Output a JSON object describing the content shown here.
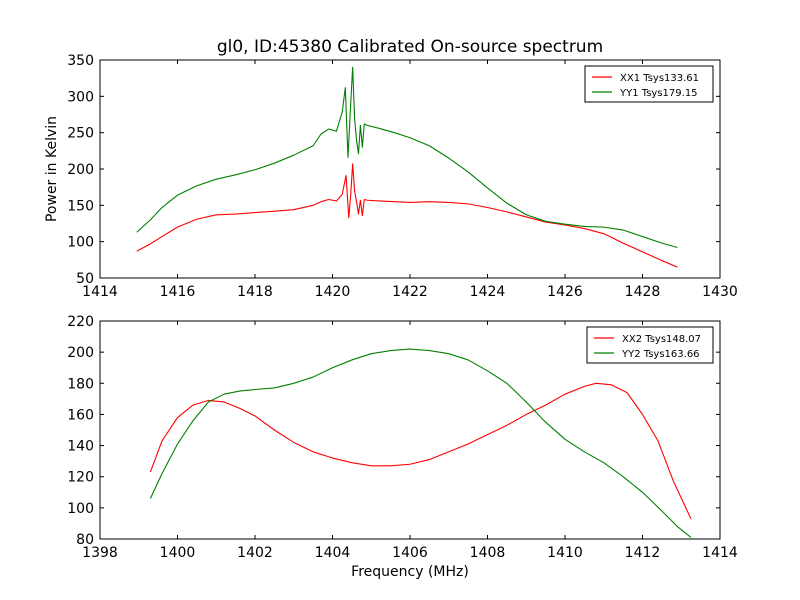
{
  "chart_data": [
    {
      "type": "line",
      "title": "gl0, ID:45380 Calibrated On-source spectrum",
      "xlabel": "",
      "ylabel": "Power in Kelvin",
      "xlim": [
        1414,
        1430
      ],
      "ylim": [
        50,
        350
      ],
      "xticks": [
        "1414",
        "1416",
        "1418",
        "1420",
        "1422",
        "1424",
        "1426",
        "1428",
        "1430"
      ],
      "yticks": [
        "50",
        "100",
        "150",
        "200",
        "250",
        "300",
        "350"
      ],
      "grid": false,
      "legend_position": "top-right",
      "series": [
        {
          "name": "XX1 Tsys133.61",
          "color": "#ff0000",
          "x": [
            1414.95,
            1415.3,
            1415.6,
            1416.0,
            1416.5,
            1417.0,
            1417.5,
            1418.0,
            1418.5,
            1419.0,
            1419.5,
            1419.7,
            1419.9,
            1420.1,
            1420.25,
            1420.35,
            1420.42,
            1420.47,
            1420.52,
            1420.57,
            1420.62,
            1420.67,
            1420.72,
            1420.77,
            1420.82,
            1420.9,
            1421.2,
            1421.6,
            1422.0,
            1422.5,
            1423.0,
            1423.5,
            1424.0,
            1424.5,
            1425.0,
            1425.5,
            1426.0,
            1426.5,
            1427.0,
            1427.5,
            1428.0,
            1428.5,
            1428.9
          ],
          "y": [
            87,
            97,
            107,
            120,
            131,
            137,
            138,
            140,
            142,
            144,
            150,
            155,
            158,
            156,
            165,
            191,
            133,
            165,
            207,
            170,
            155,
            138,
            157,
            136,
            158,
            157,
            156,
            155,
            154,
            155,
            154,
            152,
            147,
            141,
            134,
            127,
            123,
            118,
            111,
            98,
            86,
            74,
            65
          ]
        },
        {
          "name": "YY1 Tsys179.15",
          "color": "#008000",
          "x": [
            1414.95,
            1415.3,
            1415.6,
            1416.0,
            1416.5,
            1417.0,
            1417.5,
            1418.0,
            1418.5,
            1419.0,
            1419.5,
            1419.7,
            1419.9,
            1420.1,
            1420.25,
            1420.33,
            1420.4,
            1420.47,
            1420.52,
            1420.57,
            1420.62,
            1420.67,
            1420.72,
            1420.77,
            1420.82,
            1420.9,
            1421.2,
            1421.6,
            1422.0,
            1422.5,
            1423.0,
            1423.5,
            1424.0,
            1424.5,
            1425.0,
            1425.5,
            1426.0,
            1426.5,
            1427.0,
            1427.5,
            1428.0,
            1428.5,
            1428.9
          ],
          "y": [
            113,
            130,
            147,
            164,
            177,
            186,
            192,
            199,
            208,
            219,
            232,
            248,
            255,
            252,
            278,
            312,
            216,
            290,
            340,
            270,
            240,
            221,
            260,
            230,
            262,
            260,
            256,
            250,
            243,
            232,
            215,
            196,
            174,
            153,
            137,
            128,
            124,
            121,
            120,
            116,
            107,
            98,
            92
          ]
        }
      ]
    },
    {
      "type": "line",
      "title": "",
      "xlabel": "Frequency (MHz)",
      "ylabel": "",
      "xlim": [
        1398,
        1414
      ],
      "ylim": [
        80,
        220
      ],
      "xticks": [
        "1398",
        "1400",
        "1402",
        "1404",
        "1406",
        "1408",
        "1410",
        "1412",
        "1414"
      ],
      "yticks": [
        "80",
        "100",
        "120",
        "140",
        "160",
        "180",
        "200",
        "220"
      ],
      "grid": false,
      "legend_position": "top-right",
      "series": [
        {
          "name": "XX2 Tsys148.07",
          "color": "#ff0000",
          "x": [
            1399.3,
            1399.6,
            1400.0,
            1400.4,
            1400.8,
            1401.2,
            1401.6,
            1402.0,
            1402.5,
            1403.0,
            1403.5,
            1404.0,
            1404.5,
            1405.0,
            1405.5,
            1406.0,
            1406.5,
            1407.0,
            1407.5,
            1408.0,
            1408.5,
            1409.0,
            1409.5,
            1410.0,
            1410.5,
            1410.8,
            1411.2,
            1411.6,
            1412.0,
            1412.4,
            1412.8,
            1413.25
          ],
          "y": [
            123,
            143,
            158,
            166,
            169,
            168,
            164,
            159,
            150,
            142,
            136,
            132,
            129,
            127,
            127,
            128,
            131,
            136,
            141,
            147,
            153,
            160,
            166,
            173,
            178,
            180,
            179,
            174,
            160,
            143,
            117,
            93
          ]
        },
        {
          "name": "YY2 Tsys163.66",
          "color": "#008000",
          "x": [
            1399.3,
            1399.6,
            1400.0,
            1400.4,
            1400.8,
            1401.2,
            1401.6,
            1402.0,
            1402.5,
            1403.0,
            1403.5,
            1404.0,
            1404.5,
            1405.0,
            1405.5,
            1406.0,
            1406.5,
            1407.0,
            1407.5,
            1408.0,
            1408.5,
            1409.0,
            1409.5,
            1410.0,
            1410.5,
            1411.0,
            1411.5,
            1412.0,
            1412.5,
            1412.9,
            1413.25
          ],
          "y": [
            106,
            122,
            141,
            156,
            168,
            173,
            175,
            176,
            177,
            180,
            184,
            190,
            195,
            199,
            201,
            202,
            201,
            199,
            195,
            188,
            180,
            168,
            155,
            144,
            136,
            129,
            120,
            110,
            98,
            88,
            81
          ]
        }
      ]
    }
  ]
}
